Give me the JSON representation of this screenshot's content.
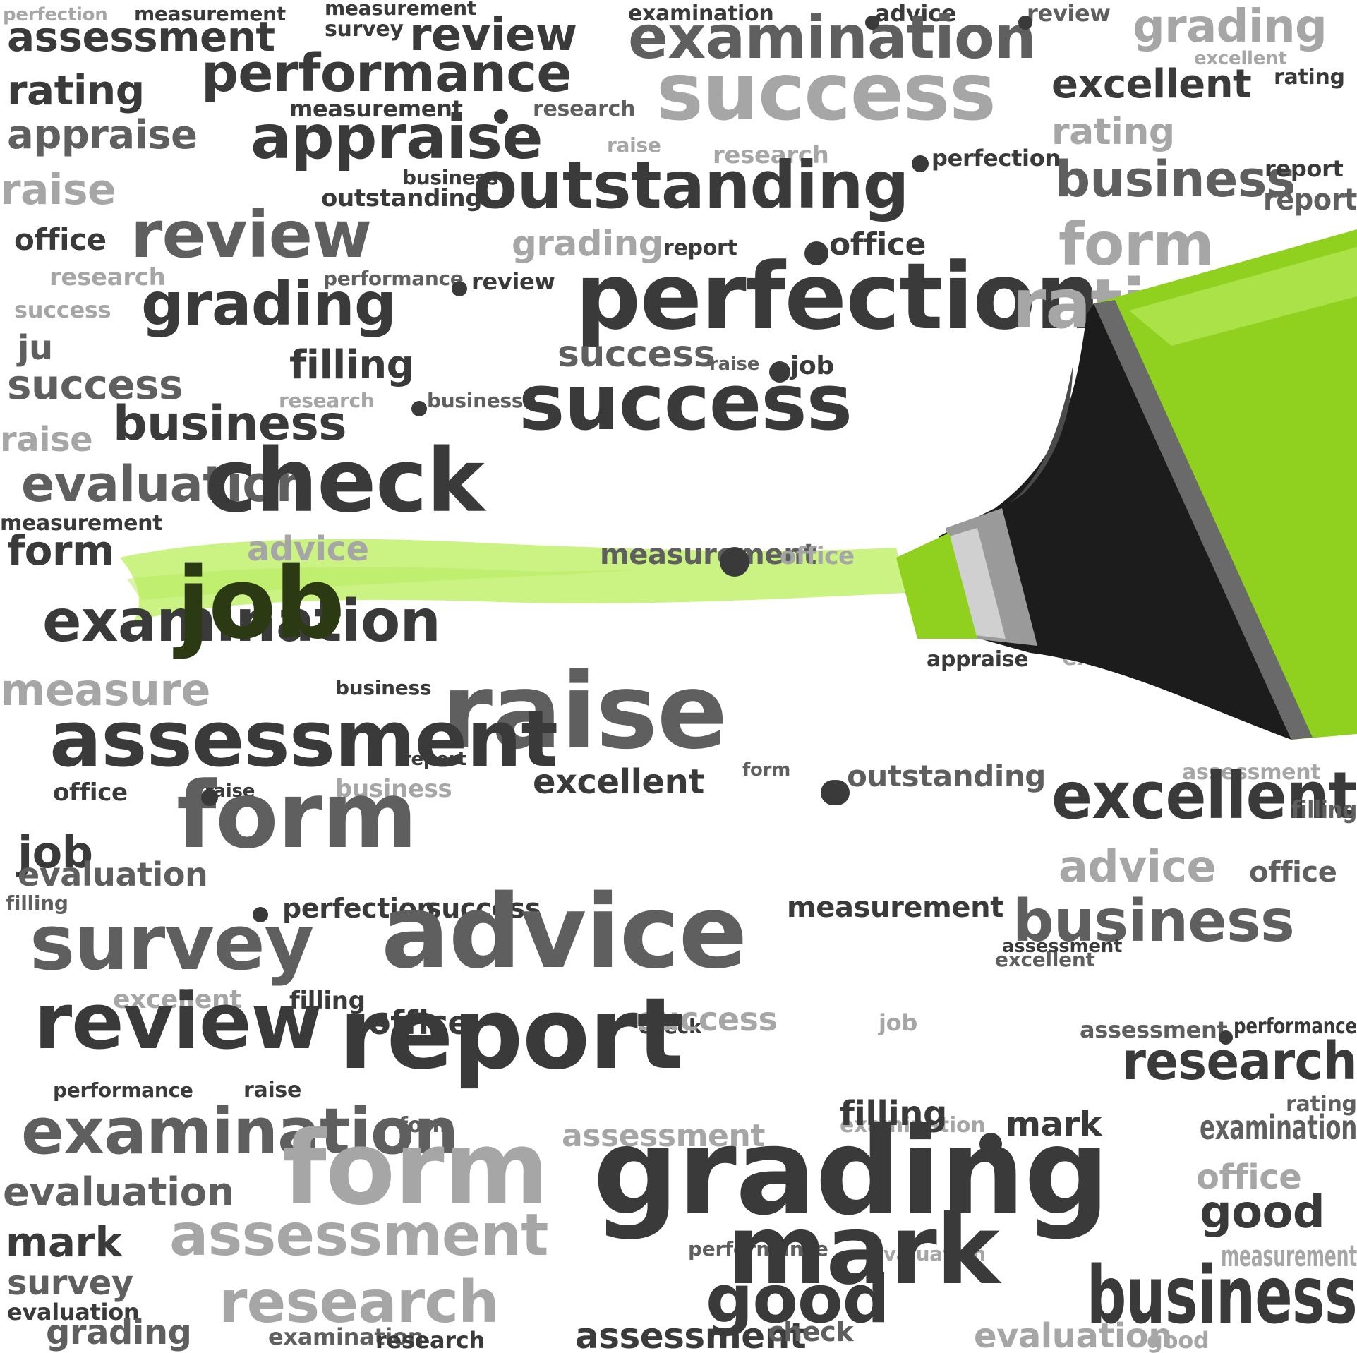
{
  "colors": {
    "background": "#ffffff",
    "dark": "#3a3a3a",
    "mid": "#5f5f5f",
    "light": "#a6a6a6",
    "highlight_stroke": "#c7f27c",
    "highlighter_body": "#8fd11e",
    "highlighter_tip": "#1c1c1c",
    "highlighter_cap": "#9a9a9a"
  },
  "icons": {
    "highlighter": "green-highlighter-marker-icon"
  },
  "highlighted_word": "appraise",
  "words": [
    "perfection",
    "measurement",
    "measurement",
    "examination",
    "advice",
    "review",
    "assessment",
    "survey",
    "review",
    "examination",
    "grading",
    "excellent",
    "rating",
    "performance",
    "success",
    "excellent",
    "rating",
    "measurement",
    "research",
    "raise",
    "appraise",
    "appraise",
    "rating",
    "research",
    "outstanding",
    "perfection",
    "raise",
    "business",
    "outstanding",
    "business",
    "report",
    "report",
    "office",
    "review",
    "form",
    "grading",
    "report",
    "office",
    "research",
    "performance",
    "review",
    "success",
    "grading",
    "perfection",
    "rating",
    "ju",
    "filling",
    "success",
    "raise",
    "job",
    "success",
    "research",
    "business",
    "success",
    "business",
    "raise",
    "evaluation",
    "check",
    "measurement",
    "form",
    "advice",
    "measurement",
    "office",
    "examination",
    "job",
    "appraise",
    "excellent",
    "measure",
    "business",
    "raise",
    "assessment",
    "report",
    "office",
    "raise",
    "business",
    "form",
    "excellent",
    "outstanding",
    "assessment",
    "excellent",
    "filling",
    "job",
    "form",
    "evaluation",
    "advice",
    "office",
    "filling",
    "perfection",
    "success",
    "measurement",
    "business",
    "survey",
    "advice",
    "excellent",
    "assessment",
    "excellent",
    "filling",
    "review",
    "office",
    "check",
    "success",
    "job",
    "assessment",
    "performance",
    "report",
    "research",
    "performance",
    "raise",
    "examination",
    "rating",
    "form",
    "mark",
    "assessment",
    "examination",
    "filling",
    "examination",
    "form",
    "grading",
    "office",
    "evaluation",
    "good",
    "mark",
    "assessment",
    "performance",
    "evaluation",
    "mark",
    "survey",
    "measurement",
    "research",
    "good",
    "business",
    "evaluation",
    "grading",
    "examination",
    "research",
    "assessment",
    "check",
    "evaluation",
    "good"
  ]
}
